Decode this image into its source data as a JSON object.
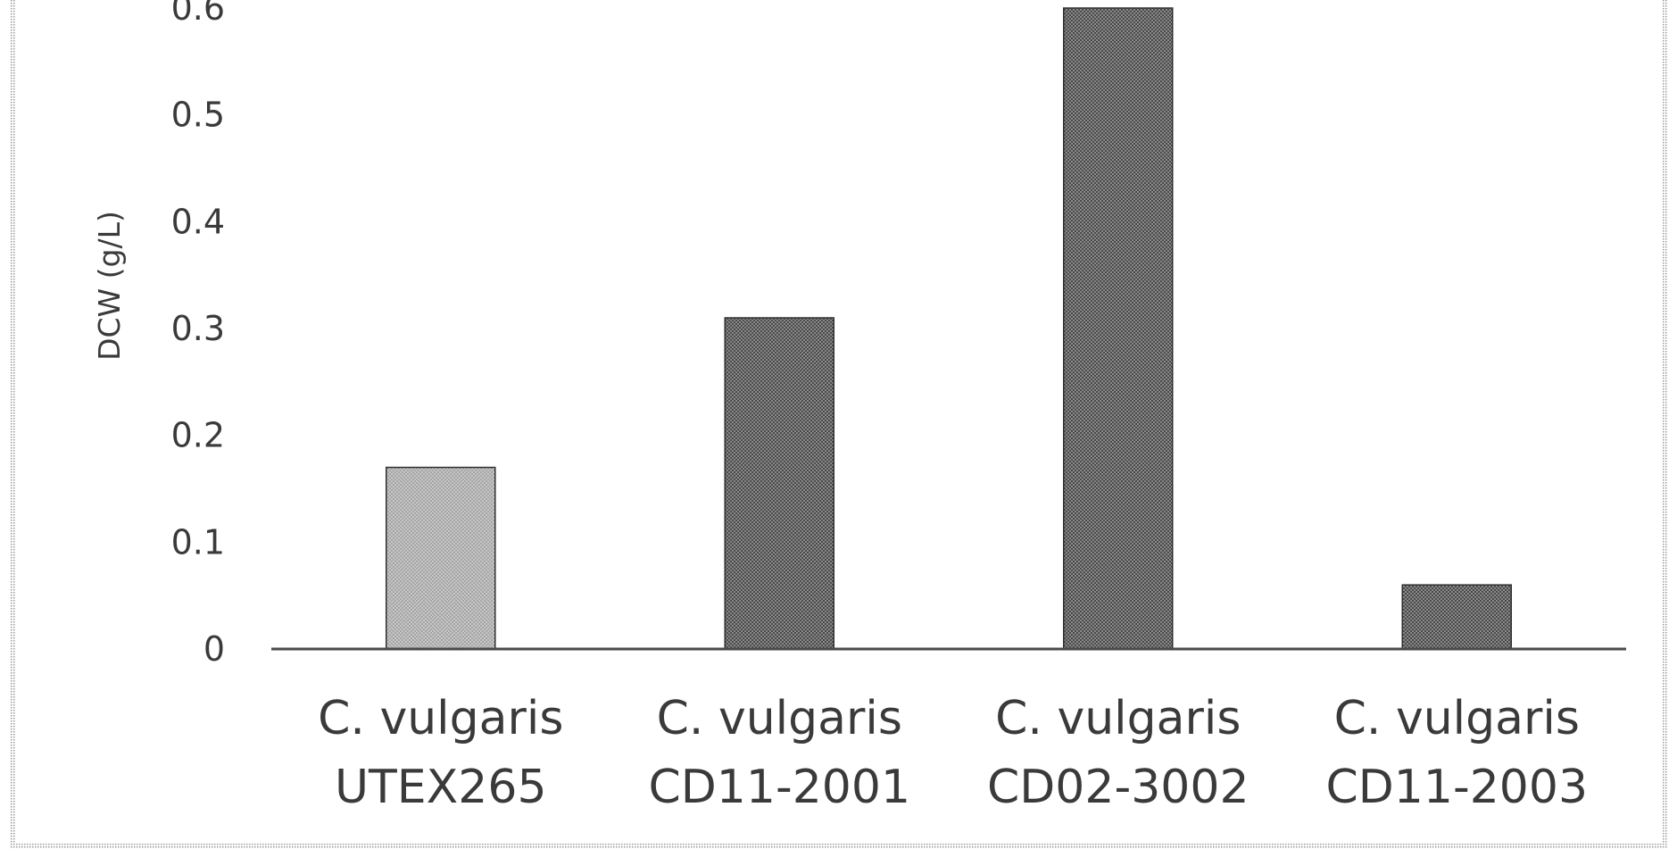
{
  "chart_data": {
    "type": "bar",
    "title": "",
    "xlabel": "",
    "ylabel": "DCW (g/L)",
    "ylim": [
      0,
      0.6
    ],
    "yticks": [
      "0",
      "0.1",
      "0.2",
      "0.3",
      "0.4",
      "0.5",
      "0.6"
    ],
    "ytick_values": [
      0,
      0.1,
      0.2,
      0.3,
      0.4,
      0.5,
      0.6
    ],
    "grid": false,
    "legend": "none",
    "categories": [
      [
        "C. vulgaris",
        "UTEX265"
      ],
      [
        "C. vulgaris",
        "CD11-2001"
      ],
      [
        "C. vulgaris",
        "CD02-3002"
      ],
      [
        "C. vulgaris",
        "CD11-2003"
      ]
    ],
    "values": [
      0.17,
      0.31,
      0.6,
      0.06
    ],
    "bar_colors": [
      "#a6a6a6",
      "#4a4a4a",
      "#4a4a4a",
      "#4a4a4a"
    ]
  }
}
